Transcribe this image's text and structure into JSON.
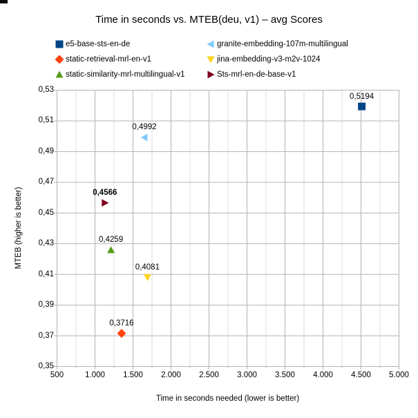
{
  "chart_data": {
    "type": "scatter",
    "title": "Time in seconds vs. MTEB(deu, v1) – avg Scores",
    "xlabel": "Time in seconds needed (lower is better)",
    "ylabel": "MTEB (higher is better)",
    "xlim": [
      500,
      5000
    ],
    "ylim": [
      0.35,
      0.53
    ],
    "legend_position": "top",
    "legend_columns": 2,
    "grid": {
      "x_major": true,
      "x_minor": true,
      "y_major": true,
      "y_minor": false
    },
    "colors": {
      "axis": "#b3b3b3",
      "grid_major": "#b3b3b3",
      "grid_minor": "#dcdcdc",
      "text": "#000000",
      "background": "#ffffff"
    },
    "x_ticks": [
      {
        "value": 500,
        "label": "500"
      },
      {
        "value": 1000,
        "label": "1.000"
      },
      {
        "value": 1500,
        "label": "1.500"
      },
      {
        "value": 2000,
        "label": "2.000"
      },
      {
        "value": 2500,
        "label": "2.500"
      },
      {
        "value": 3000,
        "label": "3.000"
      },
      {
        "value": 3500,
        "label": "3.500"
      },
      {
        "value": 4000,
        "label": "4.000"
      },
      {
        "value": 4500,
        "label": "4.500"
      },
      {
        "value": 5000,
        "label": "5.000"
      }
    ],
    "x_minor_ticks": [
      750,
      1250,
      1750,
      2250,
      2750,
      3250,
      3750,
      4250,
      4750
    ],
    "y_ticks": [
      {
        "value": 0.35,
        "label": "0,35"
      },
      {
        "value": 0.37,
        "label": "0,37"
      },
      {
        "value": 0.39,
        "label": "0,39"
      },
      {
        "value": 0.41,
        "label": "0,41"
      },
      {
        "value": 0.43,
        "label": "0,43"
      },
      {
        "value": 0.45,
        "label": "0,45"
      },
      {
        "value": 0.47,
        "label": "0,47"
      },
      {
        "value": 0.49,
        "label": "0,49"
      },
      {
        "value": 0.51,
        "label": "0,51"
      },
      {
        "value": 0.53,
        "label": "0,53"
      }
    ],
    "series": [
      {
        "name": "e5-base-sts-en-de",
        "marker": "square",
        "color": "#004586",
        "x": 4510,
        "y": 0.5194,
        "label": "0,5194",
        "label_bold": false
      },
      {
        "name": "granite-embedding-107m-multilingual",
        "marker": "triangle-left",
        "color": "#83caff",
        "x": 1650,
        "y": 0.4992,
        "label": "0,4992",
        "label_bold": false
      },
      {
        "name": "static-retrieval-mrl-en-v1",
        "marker": "diamond",
        "color": "#ff420e",
        "x": 1350,
        "y": 0.3716,
        "label": "0,3716",
        "label_bold": false
      },
      {
        "name": "jina-embedding-v3-m2v-1024",
        "marker": "triangle-down",
        "color": "#ffd320",
        "x": 1690,
        "y": 0.4081,
        "label": "0,4081",
        "label_bold": false
      },
      {
        "name": "static-similarity-mrl-multilingual-v1",
        "marker": "triangle-up",
        "color": "#579d1c",
        "x": 1210,
        "y": 0.4259,
        "label": "0,4259",
        "label_bold": false
      },
      {
        "name": "Sts-mrl-en-de-base-v1",
        "marker": "triangle-right",
        "color": "#7e0021",
        "x": 1130,
        "y": 0.4566,
        "label": "0,4566",
        "label_bold": true
      }
    ]
  }
}
